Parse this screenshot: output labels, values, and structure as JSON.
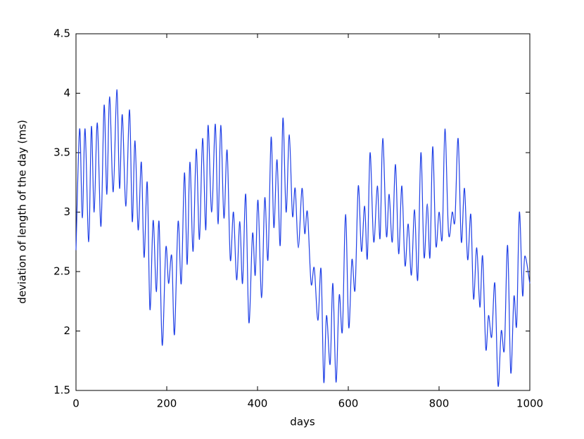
{
  "chart_data": {
    "type": "line",
    "xlabel": "days",
    "ylabel": "deviation of length of the day (ms)",
    "xlim": [
      0,
      1000
    ],
    "xticks": [
      0,
      200,
      400,
      600,
      800,
      1000
    ],
    "ylim": [
      1.5,
      4.5
    ],
    "yticks": [
      1.5,
      2,
      2.5,
      3,
      3.5,
      4,
      4.5
    ],
    "x": [
      0,
      8,
      14,
      20,
      28,
      34,
      40,
      47,
      55,
      62,
      68,
      74,
      82,
      90,
      96,
      102,
      110,
      118,
      124,
      130,
      137,
      144,
      150,
      157,
      163,
      170,
      177,
      183,
      190,
      198,
      204,
      211,
      217,
      225,
      232,
      239,
      245,
      251,
      258,
      265,
      272,
      279,
      286,
      291,
      299,
      307,
      313,
      319,
      326,
      333,
      340,
      347,
      354,
      361,
      367,
      374,
      381,
      389,
      395,
      401,
      409,
      416,
      423,
      430,
      436,
      443,
      450,
      456,
      463,
      470,
      477,
      483,
      490,
      498,
      504,
      510,
      518,
      525,
      533,
      540,
      546,
      552,
      560,
      566,
      573,
      580,
      587,
      594,
      601,
      608,
      615,
      622,
      629,
      636,
      642,
      648,
      656,
      664,
      670,
      676,
      684,
      690,
      697,
      704,
      711,
      718,
      725,
      732,
      739,
      746,
      753,
      760,
      767,
      774,
      780,
      786,
      793,
      800,
      807,
      813,
      821,
      829,
      835,
      842,
      849,
      856,
      863,
      870,
      876,
      883,
      890,
      896,
      903,
      909,
      916,
      923,
      930,
      937,
      944,
      951,
      958,
      965,
      971,
      977,
      984,
      989,
      1000
    ],
    "series": [
      {
        "color": "#1f3fe6",
        "values": [
          2.68,
          3.7,
          2.95,
          3.7,
          2.75,
          3.72,
          3.0,
          3.75,
          2.88,
          3.9,
          3.15,
          3.97,
          3.17,
          4.03,
          3.2,
          3.82,
          3.05,
          3.86,
          2.92,
          3.6,
          2.85,
          3.42,
          2.62,
          3.25,
          2.18,
          2.93,
          2.33,
          2.92,
          1.88,
          2.7,
          2.4,
          2.63,
          1.97,
          2.92,
          2.4,
          3.33,
          2.56,
          3.42,
          2.67,
          3.53,
          2.77,
          3.62,
          2.85,
          3.73,
          3.0,
          3.74,
          2.9,
          3.73,
          2.95,
          3.52,
          2.6,
          3.0,
          2.43,
          2.92,
          2.4,
          3.15,
          2.07,
          2.82,
          2.47,
          3.1,
          2.28,
          3.12,
          2.6,
          3.63,
          2.87,
          3.44,
          2.72,
          3.79,
          3.0,
          3.65,
          2.97,
          3.2,
          2.7,
          3.2,
          2.82,
          3.0,
          2.4,
          2.53,
          2.09,
          2.52,
          1.57,
          2.13,
          1.72,
          2.4,
          1.57,
          2.3,
          2.0,
          2.98,
          2.03,
          2.6,
          2.35,
          3.22,
          2.67,
          3.05,
          2.61,
          3.5,
          2.75,
          3.22,
          2.78,
          3.62,
          2.8,
          3.15,
          2.75,
          3.4,
          2.65,
          3.22,
          2.55,
          2.9,
          2.47,
          3.02,
          2.43,
          3.5,
          2.62,
          3.07,
          2.62,
          3.55,
          2.72,
          3.0,
          2.78,
          3.7,
          2.82,
          3.0,
          2.93,
          3.62,
          2.75,
          3.2,
          2.6,
          2.98,
          2.27,
          2.7,
          2.2,
          2.63,
          1.85,
          2.13,
          1.95,
          2.4,
          1.54,
          2.0,
          1.85,
          2.72,
          1.65,
          2.29,
          2.05,
          3.0,
          2.3,
          2.63,
          2.4
        ]
      }
    ]
  }
}
